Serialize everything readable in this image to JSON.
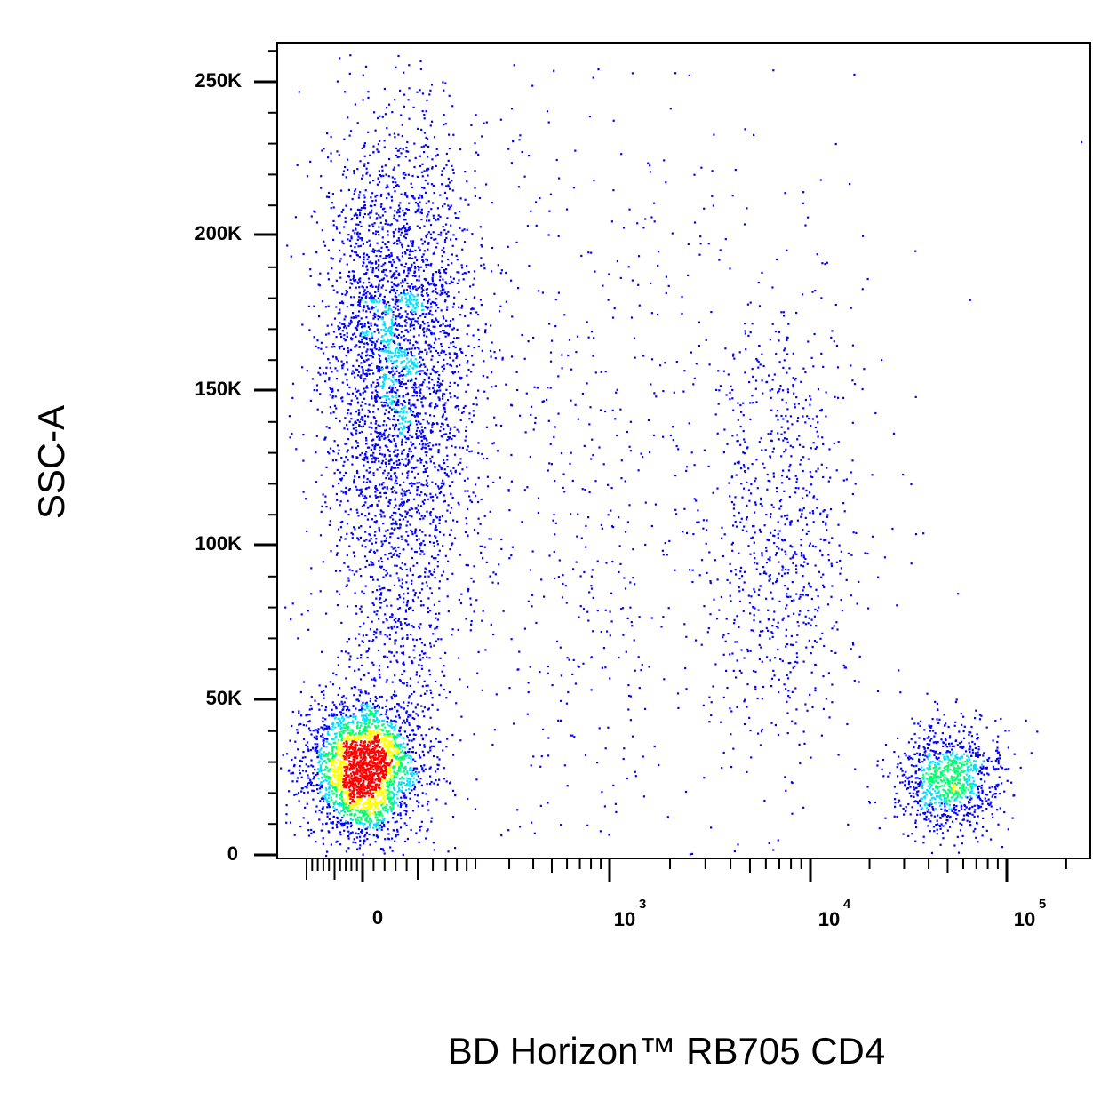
{
  "chart_data": {
    "type": "scatter",
    "style": "density-dot-plot",
    "xlabel": "BD Horizon™ RB705 CD4",
    "ylabel": "SSC-A",
    "x_scale": "biexponential",
    "x_ticks": [
      {
        "value": 0,
        "base": "0",
        "exp": ""
      },
      {
        "value": 1000,
        "base": "10",
        "exp": "3"
      },
      {
        "value": 10000,
        "base": "10",
        "exp": "4"
      },
      {
        "value": 100000,
        "base": "10",
        "exp": "5"
      }
    ],
    "y_ticks": [
      {
        "value": 0,
        "label": "0"
      },
      {
        "value": 50000,
        "label": "50K"
      },
      {
        "value": 100000,
        "label": "100K"
      },
      {
        "value": 150000,
        "label": "150K"
      },
      {
        "value": 200000,
        "label": "200K"
      },
      {
        "value": 250000,
        "label": "250K"
      }
    ],
    "ylim": [
      0,
      262144
    ],
    "grid": false,
    "density_colors": [
      "#0000ff",
      "#00e0ff",
      "#00ff70",
      "#ffff00",
      "#ff0000"
    ],
    "populations": [
      {
        "x_center": 0,
        "y_center": 28000,
        "count": 2600,
        "density": "high"
      },
      {
        "x_center": 60,
        "y_center": 165000,
        "count": 3000,
        "density": "medium"
      },
      {
        "x_center": 60,
        "y_center": 80000,
        "count": 700,
        "density": "low"
      },
      {
        "x_center": 7000,
        "y_center": 105000,
        "count": 750,
        "density": "low"
      },
      {
        "x_center": 50000,
        "y_center": 25000,
        "count": 1000,
        "density": "high"
      },
      {
        "x_center": 700,
        "y_center": 120000,
        "count": 900,
        "density": "sparse"
      }
    ]
  }
}
